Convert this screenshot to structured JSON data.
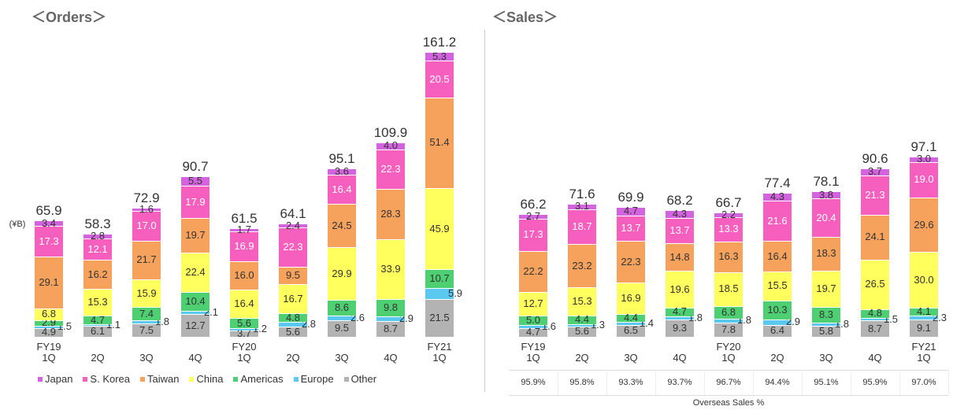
{
  "chart_data": [
    {
      "type": "stacked_bar",
      "title": "＜Orders＞",
      "unit_label": "(¥B)",
      "categories": [
        "FY19\n1Q",
        "2Q",
        "3Q",
        "4Q",
        "FY20\n1Q",
        "2Q",
        "3Q",
        "4Q",
        "FY21\n1Q"
      ],
      "ylim": [
        0,
        165
      ],
      "series": [
        {
          "name": "Japan",
          "color": "#d463e0",
          "label_color": "#333333",
          "values": [
            3.4,
            2.8,
            1.6,
            5.5,
            1.7,
            2.4,
            3.6,
            4.0,
            5.3
          ],
          "value_labels": [
            "3.4",
            "2.8",
            "1.6",
            "5.5",
            "1.7",
            "2.4",
            "3.6",
            "4.0",
            "5.3"
          ]
        },
        {
          "name": "S. Korea",
          "color": "#f75fbf",
          "label_color": "#ffffff",
          "values": [
            17.3,
            12.1,
            17.0,
            17.9,
            16.9,
            22.3,
            16.4,
            22.3,
            20.5
          ],
          "value_labels": [
            "17.3",
            "12.1",
            "17.0",
            "17.9",
            "16.9",
            "22.3",
            "16.4",
            "22.3",
            "20.5"
          ]
        },
        {
          "name": "Taiwan",
          "color": "#f6a25d",
          "label_color": "#333333",
          "values": [
            29.1,
            16.2,
            21.7,
            19.7,
            16.0,
            9.5,
            24.5,
            28.3,
            51.4
          ],
          "value_labels": [
            "29.1",
            "16.2",
            "21.7",
            "19.7",
            "16.0",
            "9.5",
            "24.5",
            "28.3",
            "51.4"
          ]
        },
        {
          "name": "China",
          "color": "#ffff5e",
          "label_color": "#333333",
          "values": [
            6.8,
            15.3,
            15.9,
            22.4,
            16.4,
            16.7,
            29.9,
            33.9,
            45.9
          ]
        },
        {
          "name": "Americas",
          "color": "#4dcf72",
          "label_color": "#333333",
          "values": [
            2.9,
            4.7,
            7.4,
            10.4,
            5.6,
            4.8,
            8.6,
            9.8,
            10.7
          ]
        },
        {
          "name": "Europe",
          "color": "#5bc8f0",
          "label_color": "#333333",
          "outside": true,
          "values": [
            1.5,
            1.1,
            1.8,
            2.1,
            1.2,
            2.8,
            2.6,
            2.9,
            5.9
          ]
        },
        {
          "name": "Other",
          "color": "#b3b3b3",
          "label_color": "#333333",
          "values": [
            4.9,
            6.1,
            7.5,
            12.7,
            3.7,
            5.6,
            9.5,
            8.7,
            21.5
          ]
        }
      ],
      "totals": [
        65.9,
        58.3,
        72.9,
        90.7,
        61.5,
        64.1,
        95.1,
        109.9,
        161.2
      ]
    },
    {
      "type": "stacked_bar",
      "title": "＜Sales＞",
      "categories": [
        "FY19\n1Q",
        "2Q",
        "3Q",
        "4Q",
        "FY20\n1Q",
        "2Q",
        "3Q",
        "4Q",
        "FY21\n1Q"
      ],
      "ylim": [
        0,
        157
      ],
      "series": [
        {
          "color": "#d463e0",
          "label_color": "#333333",
          "values": [
            2.7,
            3.1,
            4.7,
            4.3,
            2.2,
            4.3,
            3.8,
            3.7,
            3.0
          ],
          "value_labels": [
            "2.7",
            "3.1",
            "4.7",
            "4.3",
            "2.2",
            "4.3",
            "3.8",
            "3.7",
            "3.0"
          ]
        },
        {
          "color": "#f75fbf",
          "label_color": "#ffffff",
          "values": [
            17.3,
            18.7,
            13.7,
            13.7,
            13.3,
            21.6,
            20.4,
            21.3,
            19.0
          ],
          "value_labels": [
            "17.3",
            "18.7",
            "13.7",
            "13.7",
            "13.3",
            "21.6",
            "20.4",
            "21.3",
            "19.0"
          ]
        },
        {
          "color": "#f6a25d",
          "label_color": "#333333",
          "values": [
            22.2,
            23.2,
            22.3,
            14.8,
            16.3,
            16.4,
            18.3,
            24.1,
            29.6
          ]
        },
        {
          "color": "#ffff5e",
          "label_color": "#333333",
          "values": [
            12.7,
            15.3,
            16.9,
            19.6,
            18.5,
            15.5,
            19.7,
            26.5,
            30.0
          ],
          "value_labels": [
            "12.7",
            "15.3",
            "16.9",
            "19.6",
            "18.5",
            "15.5",
            "19.7",
            "26.5",
            "30.0"
          ]
        },
        {
          "color": "#4dcf72",
          "label_color": "#333333",
          "values": [
            5.0,
            4.4,
            4.4,
            4.7,
            6.8,
            10.3,
            8.3,
            4.8,
            4.1
          ],
          "value_labels": [
            "5.0",
            "4.4",
            "4.4",
            "4.7",
            "6.8",
            "10.3",
            "8.3",
            "4.8",
            "4.1"
          ]
        },
        {
          "color": "#5bc8f0",
          "label_color": "#333333",
          "outside": true,
          "values": [
            1.6,
            1.3,
            1.4,
            1.8,
            1.8,
            2.9,
            1.8,
            1.5,
            2.3
          ]
        },
        {
          "color": "#b3b3b3",
          "label_color": "#333333",
          "values": [
            4.7,
            5.6,
            6.5,
            9.3,
            7.8,
            6.4,
            5.8,
            8.7,
            9.1
          ]
        }
      ],
      "totals": [
        66.2,
        71.6,
        69.9,
        68.2,
        66.7,
        77.4,
        78.1,
        90.6,
        97.1
      ],
      "overseas": {
        "label": "Overseas Sales %",
        "values": [
          95.9,
          95.8,
          93.3,
          93.7,
          96.7,
          94.4,
          95.1,
          95.9,
          97.0
        ],
        "value_labels": [
          "95.9%",
          "95.8%",
          "93.3%",
          "93.7%",
          "96.7%",
          "94.4%",
          "95.1%",
          "95.9%",
          "97.0%"
        ]
      }
    }
  ]
}
